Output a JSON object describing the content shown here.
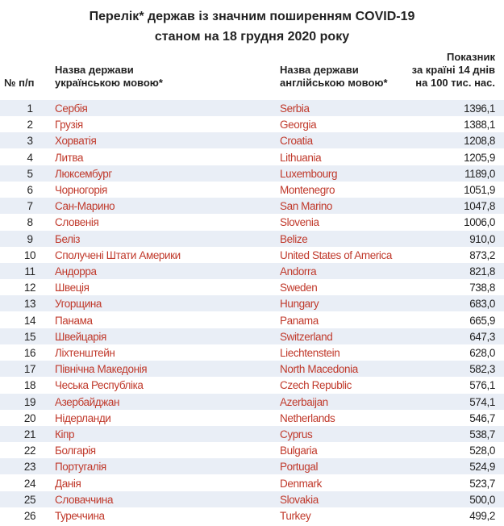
{
  "title": [
    "Перелік* держав із значним поширенням COVID-19",
    "станом на 18 грудня 2020 року"
  ],
  "table": {
    "header": [
      [
        "№ п/п"
      ],
      [
        "Назва держави",
        "українською мовою*"
      ],
      [
        "Назва держави",
        "англійською мовою*"
      ],
      [
        "Показник",
        "за країні 14 днів",
        "на 100 тис. нас."
      ]
    ],
    "rows": [
      [
        "1",
        "Сербія",
        "Serbia",
        "1396,1"
      ],
      [
        "2",
        "Грузія",
        "Georgia",
        "1388,1"
      ],
      [
        "3",
        "Хорватія",
        "Croatia",
        "1208,8"
      ],
      [
        "4",
        "Литва",
        "Lithuania",
        "1205,9"
      ],
      [
        "5",
        "Люксембург",
        "Luxembourg",
        "1189,0"
      ],
      [
        "6",
        "Чорногорія",
        "Montenegro",
        "1051,9"
      ],
      [
        "7",
        "Сан-Марино",
        "San Marino",
        "1047,8"
      ],
      [
        "8",
        "Словенія",
        "Slovenia",
        "1006,0"
      ],
      [
        "9",
        "Беліз",
        "Belize",
        "910,0"
      ],
      [
        "10",
        "Сполучені Штати Америки",
        "United States of America",
        "873,2"
      ],
      [
        "11",
        "Андорра",
        "Andorra",
        "821,8"
      ],
      [
        "12",
        "Швеція",
        "Sweden",
        "738,8"
      ],
      [
        "13",
        "Угорщина",
        "Hungary",
        "683,0"
      ],
      [
        "14",
        "Панама",
        "Panama",
        "665,9"
      ],
      [
        "15",
        "Швейцарія",
        "Switzerland",
        "647,3"
      ],
      [
        "16",
        "Ліхтенштейн",
        "Liechtenstein",
        "628,0"
      ],
      [
        "17",
        "Північна Македонія",
        "North Macedonia",
        "582,3"
      ],
      [
        "18",
        "Чеська Республіка",
        "Czech Republic",
        "576,1"
      ],
      [
        "19",
        "Азербайджан",
        "Azerbaijan",
        "574,1"
      ],
      [
        "20",
        "Нідерланди",
        "Netherlands",
        "546,7"
      ],
      [
        "21",
        "Кіпр",
        "Cyprus",
        "538,7"
      ],
      [
        "22",
        "Болгарія",
        "Bulgaria",
        "528,0"
      ],
      [
        "23",
        "Португалія",
        "Portugal",
        "524,9"
      ],
      [
        "24",
        "Данія",
        "Denmark",
        "523,7"
      ],
      [
        "25",
        "Словаччина",
        "Slovakia",
        "500,0"
      ],
      [
        "26",
        "Туреччина",
        "Turkey",
        "499,2"
      ]
    ]
  }
}
